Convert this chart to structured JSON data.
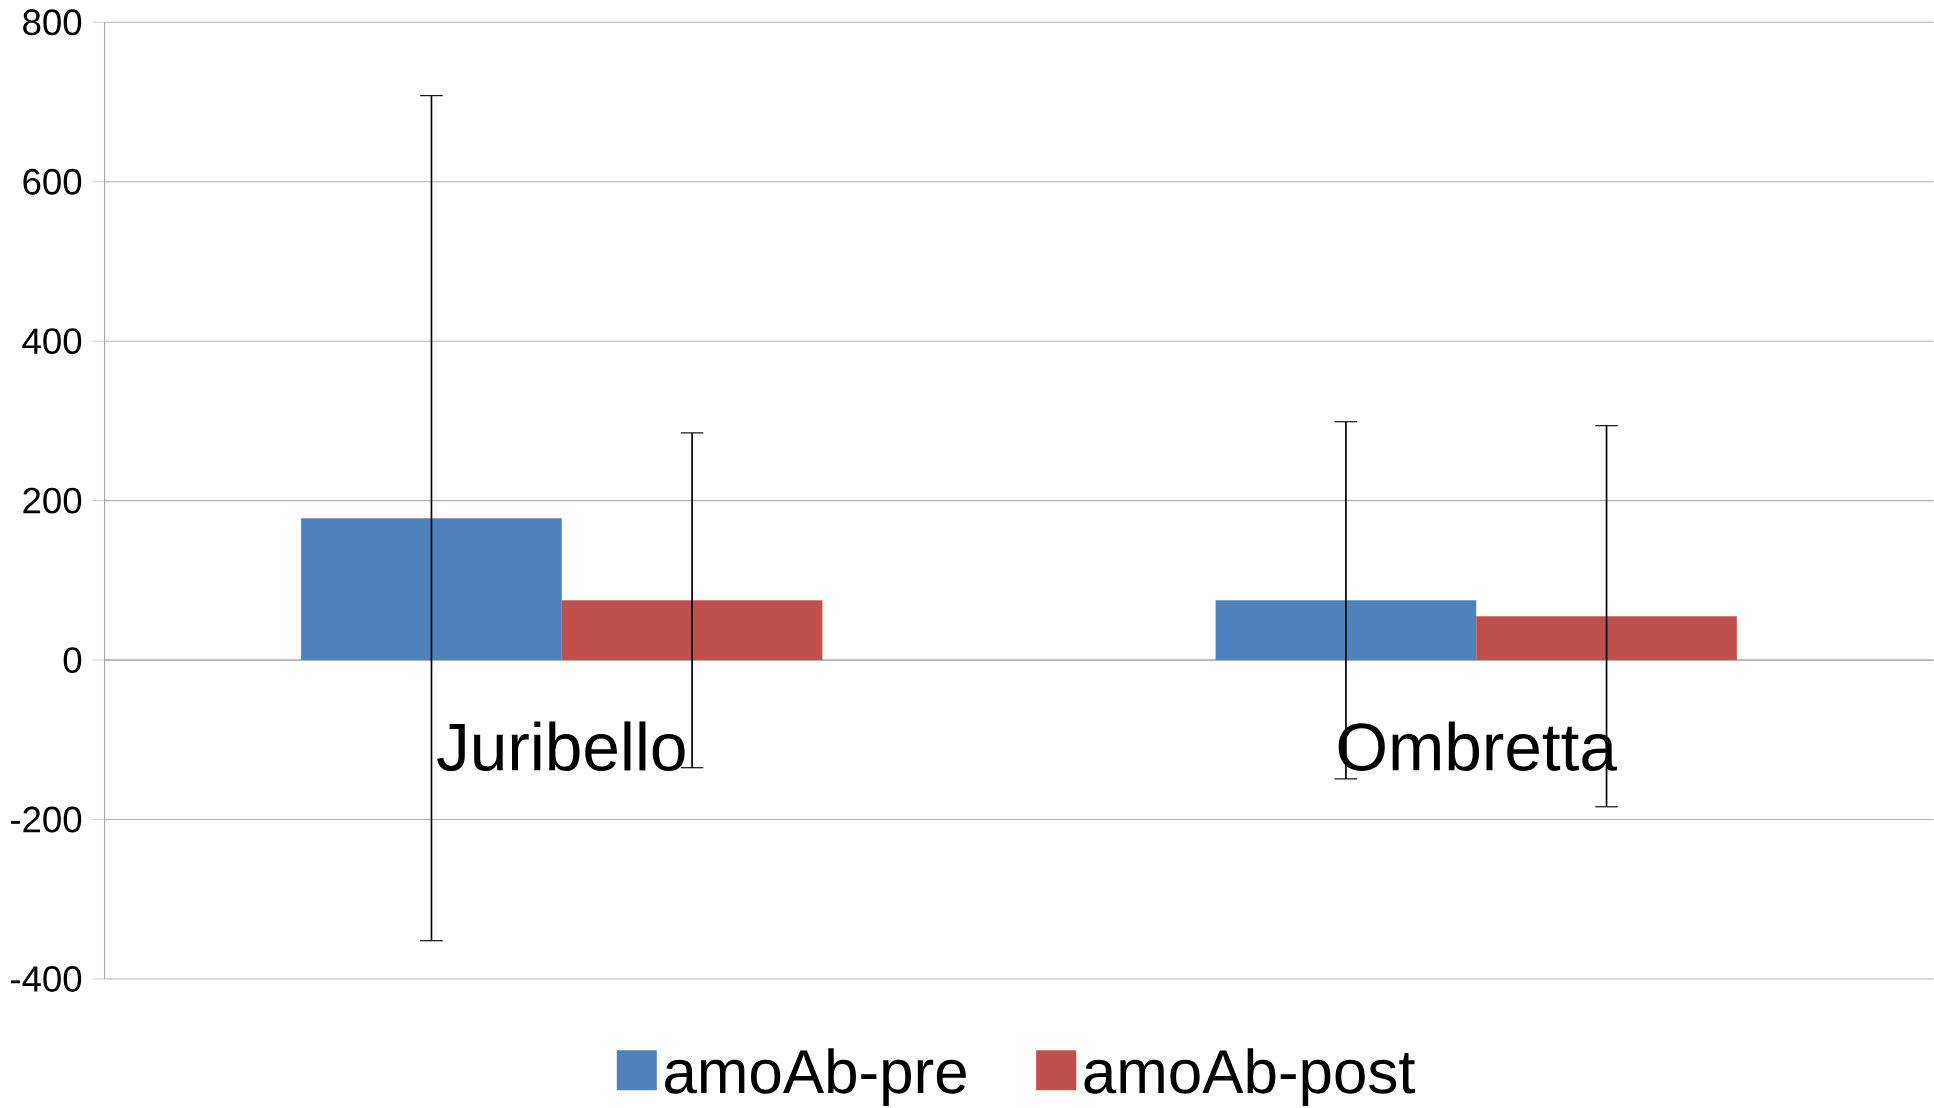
{
  "chart_data": {
    "type": "bar",
    "categories": [
      "Juribello",
      "Ombretta"
    ],
    "series": [
      {
        "name": "amoAb-pre",
        "color": "#4f81bd",
        "values": [
          178,
          75
        ],
        "errors": [
          530,
          224
        ]
      },
      {
        "name": "amoAb-post",
        "color": "#c0504d",
        "values": [
          75,
          55
        ],
        "errors": [
          210,
          239
        ]
      }
    ],
    "ylim": [
      -400,
      800
    ],
    "yticks": [
      -400,
      -200,
      0,
      200,
      400,
      600,
      800
    ],
    "grid": "y",
    "legend": "bottom"
  }
}
